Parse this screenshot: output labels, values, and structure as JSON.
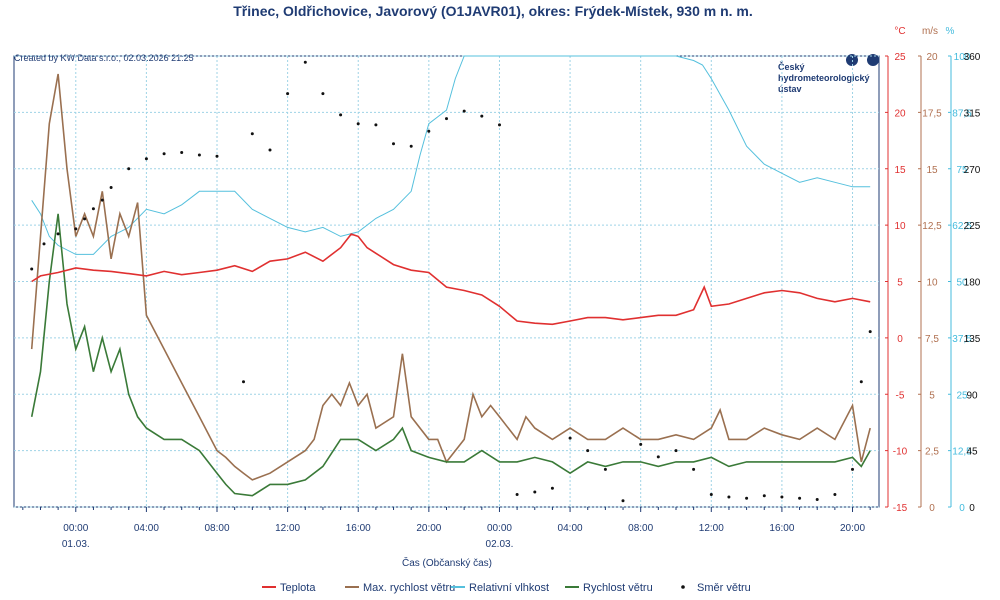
{
  "chart_data": {
    "type": "line",
    "title": "Třinec, Oldřichovice, Javorový  (O1JAVR01), okres: Frýdek-Místek, 930 m n. m.",
    "credit": "Created by KW Data s.r.o., 02.03.2026 21:25",
    "logo": {
      "line1": "Český",
      "line2": "hydrometeorologický",
      "line3": "ústav"
    },
    "xlabel": "Čas (Občanský čas)",
    "x_range_hours": [
      -3.5,
      45.5
    ],
    "x_ticks": [
      {
        "h": 0,
        "label": "00:00",
        "date": "01.03."
      },
      {
        "h": 4,
        "label": "04:00",
        "date": ""
      },
      {
        "h": 8,
        "label": "08:00",
        "date": ""
      },
      {
        "h": 12,
        "label": "12:00",
        "date": ""
      },
      {
        "h": 16,
        "label": "16:00",
        "date": ""
      },
      {
        "h": 20,
        "label": "20:00",
        "date": ""
      },
      {
        "h": 24,
        "label": "00:00",
        "date": "02.03."
      },
      {
        "h": 28,
        "label": "04:00",
        "date": ""
      },
      {
        "h": 32,
        "label": "08:00",
        "date": ""
      },
      {
        "h": 36,
        "label": "12:00",
        "date": ""
      },
      {
        "h": 40,
        "label": "16:00",
        "date": ""
      },
      {
        "h": 44,
        "label": "20:00",
        "date": ""
      }
    ],
    "axes": [
      {
        "id": "temp",
        "unit": "°C",
        "color": "#e03030",
        "range": [
          -15,
          25
        ],
        "ticks": [
          "-15",
          "-10",
          "-5",
          "0",
          "5",
          "10",
          "15",
          "20",
          "25"
        ]
      },
      {
        "id": "wind",
        "unit": "m/s",
        "color": "#b07050",
        "range": [
          0,
          20
        ],
        "ticks": [
          "0",
          "2,5",
          "5",
          "7,5",
          "10",
          "12,5",
          "15",
          "17,5",
          "20"
        ]
      },
      {
        "id": "hum",
        "unit": "%",
        "color": "#44bbdd",
        "range": [
          0,
          100
        ],
        "ticks": [
          "0",
          "12,5",
          "25",
          "37,5",
          "50",
          "62,5",
          "75",
          "87,5",
          "100"
        ]
      },
      {
        "id": "dir",
        "unit": "",
        "color": "#111111",
        "range": [
          0,
          360
        ],
        "ticks": [
          "0",
          "45",
          "90",
          "135",
          "180",
          "225",
          "270",
          "315",
          "360"
        ]
      }
    ],
    "series": [
      {
        "name": "Teplota",
        "axis": "temp",
        "color": "#e03030",
        "style": "line",
        "points": [
          [
            -2.5,
            5
          ],
          [
            -2,
            5.5
          ],
          [
            -1,
            5.8
          ],
          [
            0,
            6.2
          ],
          [
            1,
            6
          ],
          [
            2,
            5.9
          ],
          [
            3,
            5.7
          ],
          [
            4,
            5.5
          ],
          [
            5,
            5.9
          ],
          [
            6,
            5.6
          ],
          [
            7,
            5.8
          ],
          [
            8,
            6
          ],
          [
            9,
            6.4
          ],
          [
            10,
            5.9
          ],
          [
            11,
            6.8
          ],
          [
            12,
            7
          ],
          [
            13,
            7.6
          ],
          [
            14,
            6.8
          ],
          [
            15,
            8
          ],
          [
            15.6,
            9.2
          ],
          [
            16,
            9
          ],
          [
            16.5,
            8
          ],
          [
            17,
            7.5
          ],
          [
            18,
            6.5
          ],
          [
            19,
            6
          ],
          [
            20,
            5.8
          ],
          [
            21,
            4.5
          ],
          [
            22,
            4.2
          ],
          [
            23,
            3.8
          ],
          [
            24,
            2.8
          ],
          [
            25,
            1.5
          ],
          [
            26,
            1.3
          ],
          [
            27,
            1.2
          ],
          [
            28,
            1.5
          ],
          [
            29,
            1.8
          ],
          [
            30,
            1.8
          ],
          [
            31,
            1.6
          ],
          [
            32,
            1.8
          ],
          [
            33,
            2
          ],
          [
            34,
            2
          ],
          [
            35,
            2.5
          ],
          [
            35.6,
            4.5
          ],
          [
            36,
            2.8
          ],
          [
            37,
            3
          ],
          [
            38,
            3.5
          ],
          [
            39,
            4
          ],
          [
            40,
            4.2
          ],
          [
            41,
            4
          ],
          [
            42,
            3.5
          ],
          [
            43,
            3.2
          ],
          [
            44,
            3.5
          ],
          [
            45,
            3.2
          ]
        ]
      },
      {
        "name": "Max. rychlost větru",
        "axis": "wind",
        "color": "#9a7050",
        "style": "line",
        "points": [
          [
            -2.5,
            7
          ],
          [
            -2,
            12
          ],
          [
            -1.5,
            17
          ],
          [
            -1,
            19.2
          ],
          [
            -0.5,
            15
          ],
          [
            0,
            12
          ],
          [
            0.5,
            13
          ],
          [
            1,
            12
          ],
          [
            1.5,
            14
          ],
          [
            2,
            11
          ],
          [
            2.5,
            13
          ],
          [
            3,
            12
          ],
          [
            3.5,
            13.5
          ],
          [
            4,
            8.5
          ],
          [
            5,
            7
          ],
          [
            6,
            5.5
          ],
          [
            7,
            4
          ],
          [
            8,
            2.5
          ],
          [
            8.5,
            2.2
          ],
          [
            9,
            1.8
          ],
          [
            9.5,
            1.5
          ],
          [
            10,
            1.2
          ],
          [
            11,
            1.5
          ],
          [
            12,
            2
          ],
          [
            13,
            2.5
          ],
          [
            13.5,
            3
          ],
          [
            14,
            4.5
          ],
          [
            14.5,
            5
          ],
          [
            15,
            4.5
          ],
          [
            15.5,
            5.5
          ],
          [
            16,
            4.5
          ],
          [
            16.5,
            5
          ],
          [
            17,
            3.5
          ],
          [
            18,
            4
          ],
          [
            18.5,
            6.8
          ],
          [
            19,
            4
          ],
          [
            20,
            3
          ],
          [
            20.5,
            3
          ],
          [
            21,
            2
          ],
          [
            22,
            3
          ],
          [
            22.5,
            5
          ],
          [
            23,
            4
          ],
          [
            23.5,
            4.5
          ],
          [
            24,
            4
          ],
          [
            25,
            3
          ],
          [
            25.5,
            4
          ],
          [
            26,
            3.5
          ],
          [
            27,
            3
          ],
          [
            28,
            3.5
          ],
          [
            29,
            3
          ],
          [
            30,
            3
          ],
          [
            31,
            3.5
          ],
          [
            32,
            3
          ],
          [
            33,
            3
          ],
          [
            34,
            3.2
          ],
          [
            35,
            3
          ],
          [
            36,
            3.5
          ],
          [
            36.5,
            4.3
          ],
          [
            37,
            3
          ],
          [
            38,
            3
          ],
          [
            39,
            3.5
          ],
          [
            40,
            3.2
          ],
          [
            41,
            3
          ],
          [
            42,
            3.5
          ],
          [
            43,
            3
          ],
          [
            44,
            4.5
          ],
          [
            44.5,
            2
          ],
          [
            45,
            3.5
          ]
        ]
      },
      {
        "name": "Relativní vlhkost",
        "axis": "hum",
        "color": "#55c0dd",
        "style": "line",
        "points": [
          [
            -2.5,
            68
          ],
          [
            -2,
            65
          ],
          [
            -1.5,
            60
          ],
          [
            -1,
            58
          ],
          [
            0,
            56
          ],
          [
            1,
            56
          ],
          [
            2,
            60
          ],
          [
            3,
            62
          ],
          [
            4,
            66
          ],
          [
            5,
            65
          ],
          [
            6,
            67
          ],
          [
            7,
            70
          ],
          [
            8,
            70
          ],
          [
            9,
            70
          ],
          [
            10,
            66
          ],
          [
            11,
            64
          ],
          [
            12,
            62
          ],
          [
            13,
            61
          ],
          [
            14,
            62
          ],
          [
            15,
            60
          ],
          [
            16,
            61
          ],
          [
            17,
            64
          ],
          [
            18,
            66
          ],
          [
            19,
            70
          ],
          [
            19.5,
            78
          ],
          [
            20,
            85
          ],
          [
            21,
            88
          ],
          [
            21.5,
            95
          ],
          [
            22,
            100
          ],
          [
            24,
            100
          ],
          [
            26,
            100
          ],
          [
            28,
            100
          ],
          [
            30,
            100
          ],
          [
            32,
            100
          ],
          [
            34,
            100
          ],
          [
            35,
            99
          ],
          [
            35.5,
            98
          ],
          [
            36,
            95
          ],
          [
            37,
            88
          ],
          [
            38,
            80
          ],
          [
            39,
            76
          ],
          [
            40,
            74
          ],
          [
            41,
            72
          ],
          [
            42,
            73
          ],
          [
            43,
            72
          ],
          [
            44,
            71
          ],
          [
            45,
            71
          ]
        ]
      },
      {
        "name": "Rychlost větru",
        "axis": "wind",
        "color": "#3a7a38",
        "style": "line",
        "points": [
          [
            -2.5,
            4
          ],
          [
            -2,
            6
          ],
          [
            -1.5,
            10
          ],
          [
            -1,
            13
          ],
          [
            -0.5,
            9
          ],
          [
            0,
            7
          ],
          [
            0.5,
            8
          ],
          [
            1,
            6
          ],
          [
            1.5,
            7.5
          ],
          [
            2,
            6
          ],
          [
            2.5,
            7
          ],
          [
            3,
            5
          ],
          [
            3.5,
            4
          ],
          [
            4,
            3.5
          ],
          [
            5,
            3
          ],
          [
            6,
            3
          ],
          [
            7,
            2.5
          ],
          [
            8,
            1.5
          ],
          [
            8.5,
            1
          ],
          [
            9,
            0.6
          ],
          [
            10,
            0.5
          ],
          [
            11,
            1
          ],
          [
            12,
            1
          ],
          [
            13,
            1.2
          ],
          [
            14,
            1.8
          ],
          [
            15,
            3
          ],
          [
            16,
            3
          ],
          [
            17,
            2.5
          ],
          [
            18,
            3
          ],
          [
            18.5,
            3.5
          ],
          [
            19,
            2.5
          ],
          [
            20,
            2.2
          ],
          [
            21,
            2
          ],
          [
            22,
            2
          ],
          [
            23,
            2.5
          ],
          [
            24,
            2
          ],
          [
            25,
            2
          ],
          [
            26,
            2.2
          ],
          [
            27,
            2
          ],
          [
            28,
            1.5
          ],
          [
            29,
            2
          ],
          [
            30,
            1.8
          ],
          [
            31,
            2
          ],
          [
            32,
            2
          ],
          [
            33,
            1.8
          ],
          [
            34,
            2
          ],
          [
            35,
            2
          ],
          [
            36,
            2.2
          ],
          [
            37,
            1.8
          ],
          [
            38,
            2
          ],
          [
            39,
            2
          ],
          [
            40,
            2
          ],
          [
            41,
            2
          ],
          [
            42,
            2
          ],
          [
            43,
            2
          ],
          [
            44,
            2.2
          ],
          [
            44.5,
            1.8
          ],
          [
            45,
            2.5
          ]
        ]
      },
      {
        "name": "Směr větru",
        "axis": "dir",
        "color": "#111111",
        "style": "dots",
        "points": [
          [
            -2.5,
            190
          ],
          [
            -1.8,
            210
          ],
          [
            -1,
            218
          ],
          [
            0,
            222
          ],
          [
            0.5,
            230
          ],
          [
            1,
            238
          ],
          [
            1.5,
            245
          ],
          [
            2,
            255
          ],
          [
            3,
            270
          ],
          [
            4,
            278
          ],
          [
            5,
            282
          ],
          [
            6,
            283
          ],
          [
            7,
            281
          ],
          [
            8,
            280
          ],
          [
            9.5,
            100
          ],
          [
            10,
            298
          ],
          [
            11,
            285
          ],
          [
            12,
            330
          ],
          [
            13,
            355
          ],
          [
            14,
            330
          ],
          [
            15,
            313
          ],
          [
            16,
            306
          ],
          [
            17,
            305
          ],
          [
            18,
            290
          ],
          [
            19,
            288
          ],
          [
            20,
            300
          ],
          [
            21,
            310
          ],
          [
            22,
            316
          ],
          [
            23,
            312
          ],
          [
            24,
            305
          ],
          [
            25,
            10
          ],
          [
            26,
            12
          ],
          [
            27,
            15
          ],
          [
            28,
            55
          ],
          [
            29,
            45
          ],
          [
            30,
            30
          ],
          [
            31,
            5
          ],
          [
            32,
            50
          ],
          [
            33,
            40
          ],
          [
            34,
            45
          ],
          [
            35,
            30
          ],
          [
            36,
            10
          ],
          [
            37,
            8
          ],
          [
            38,
            7
          ],
          [
            39,
            9
          ],
          [
            40,
            8
          ],
          [
            41,
            7
          ],
          [
            42,
            6
          ],
          [
            43,
            10
          ],
          [
            44,
            30
          ],
          [
            44.5,
            100
          ],
          [
            45,
            140
          ]
        ]
      }
    ],
    "legend": [
      "Teplota",
      "Max. rychlost větru",
      "Relativní vlhkost",
      "Rychlost větru",
      "Směr větru"
    ],
    "legend_placement": "bottom"
  }
}
